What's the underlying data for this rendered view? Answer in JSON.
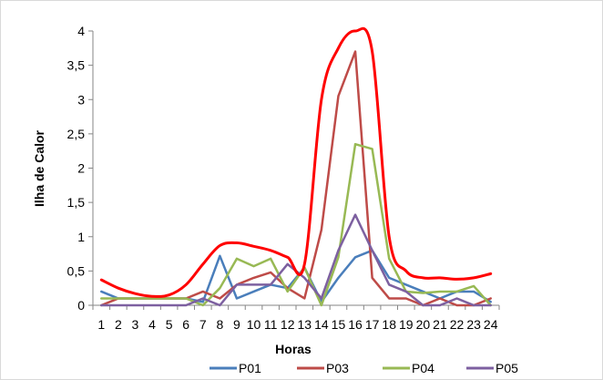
{
  "chart_data": {
    "type": "line",
    "title": "",
    "xlabel": "Horas",
    "ylabel": "Ilha de Calor",
    "categories": [
      "1",
      "2",
      "3",
      "4",
      "5",
      "6",
      "7",
      "8",
      "9",
      "10",
      "11",
      "12",
      "13",
      "14",
      "15",
      "16",
      "17",
      "18",
      "19",
      "20",
      "21",
      "22",
      "23",
      "24"
    ],
    "ylim": [
      0,
      4
    ],
    "yticks": [
      {
        "value": 0,
        "label": "0"
      },
      {
        "value": 0.5,
        "label": "0,5"
      },
      {
        "value": 1,
        "label": "1"
      },
      {
        "value": 1.5,
        "label": "1,5"
      },
      {
        "value": 2,
        "label": "2"
      },
      {
        "value": 2.5,
        "label": "2,5"
      },
      {
        "value": 3,
        "label": "3"
      },
      {
        "value": 3.5,
        "label": "3,5"
      },
      {
        "value": 4,
        "label": "4"
      }
    ],
    "grid": false,
    "legend_position": "bottom",
    "series": [
      {
        "name": "P01",
        "color": "#4a7ebb",
        "values": [
          0.2,
          0.1,
          0.1,
          0.1,
          0.1,
          0.1,
          0.05,
          0.72,
          0.1,
          0.2,
          0.3,
          0.25,
          0.55,
          0.05,
          0.4,
          0.7,
          0.8,
          0.4,
          0.3,
          0.2,
          0.1,
          0.2,
          0.2,
          0.05
        ]
      },
      {
        "name": "P03",
        "color": "#be4b48",
        "values": [
          0.0,
          0.1,
          0.1,
          0.1,
          0.1,
          0.1,
          0.2,
          0.1,
          0.3,
          0.4,
          0.48,
          0.25,
          0.1,
          1.1,
          3.05,
          3.7,
          0.4,
          0.1,
          0.1,
          0.0,
          0.1,
          0.0,
          0.0,
          0.1
        ]
      },
      {
        "name": "P04",
        "color": "#98b954",
        "values": [
          0.1,
          0.1,
          0.1,
          0.1,
          0.1,
          0.1,
          0.0,
          0.25,
          0.68,
          0.57,
          0.68,
          0.2,
          0.55,
          0.0,
          0.7,
          2.35,
          2.28,
          0.68,
          0.2,
          0.18,
          0.2,
          0.2,
          0.28,
          0.0
        ]
      },
      {
        "name": "P05",
        "color": "#7d60a0",
        "values": [
          0.0,
          0.0,
          0.0,
          0.0,
          0.0,
          0.0,
          0.1,
          0.0,
          0.3,
          0.3,
          0.3,
          0.6,
          0.4,
          0.1,
          0.8,
          1.32,
          0.8,
          0.3,
          0.2,
          0.0,
          0.0,
          0.1,
          0.0,
          0.0
        ]
      },
      {
        "name": "",
        "color": "#ff0000",
        "smooth": true,
        "values": [
          0.37,
          0.25,
          0.17,
          0.13,
          0.15,
          0.3,
          0.6,
          0.87,
          0.91,
          0.86,
          0.8,
          0.7,
          0.6,
          3.0,
          3.75,
          4.0,
          3.7,
          1.0,
          0.5,
          0.4,
          0.4,
          0.38,
          0.4,
          0.46
        ]
      }
    ]
  }
}
